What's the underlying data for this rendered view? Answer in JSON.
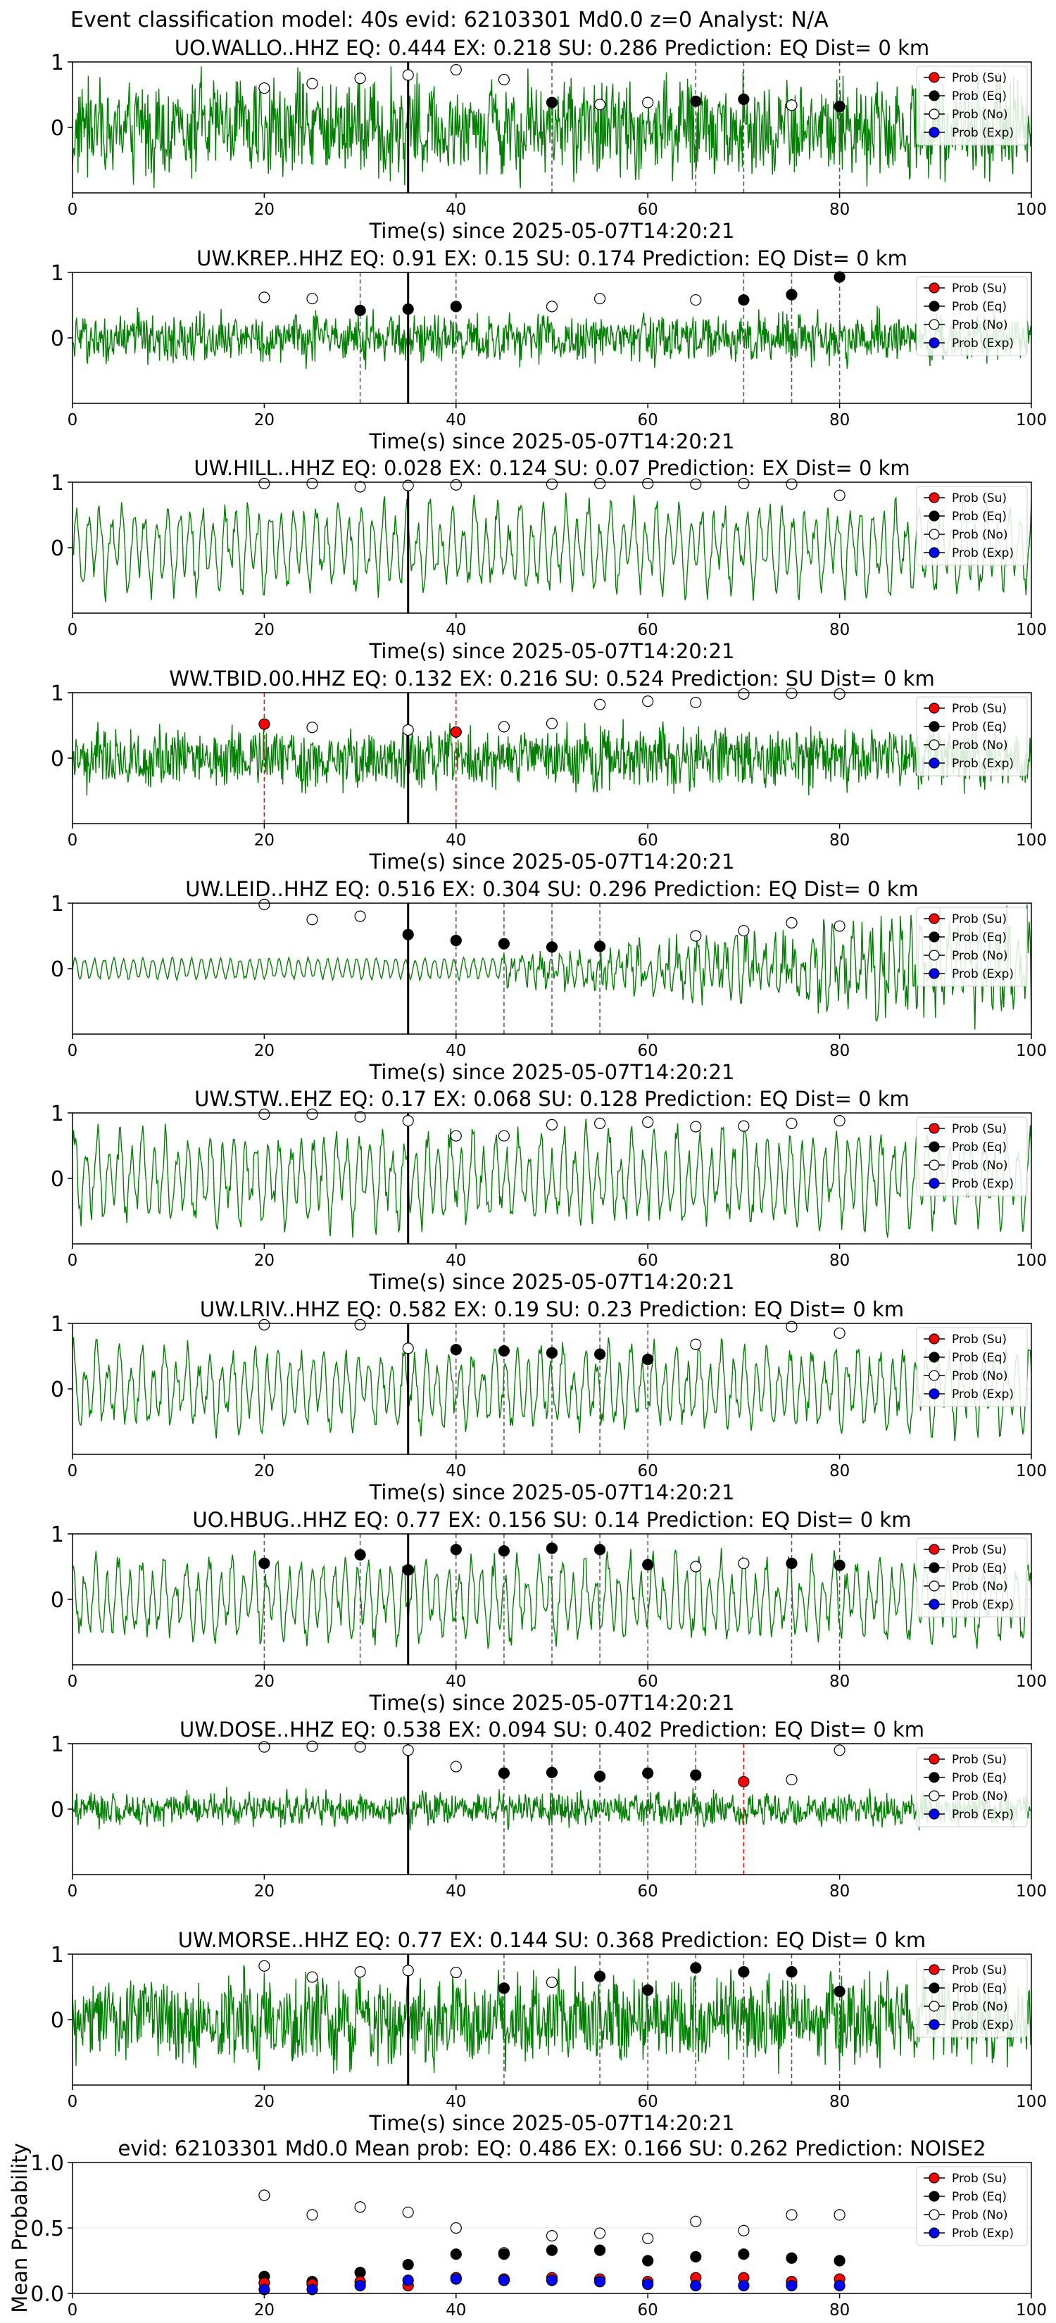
{
  "figure": {
    "title": "Event classification model: 40s evid: 62103301 Md0.0 z=0 Analyst: N/A"
  },
  "colors": {
    "waveform": "#008000",
    "su": "#ff0000",
    "eq": "#000000",
    "no": "#ffffff",
    "exp": "#0000ff",
    "pick_black": "#000000",
    "pick_red": "#ff0000"
  },
  "legend_labels": [
    "Prob (Su)",
    "Prob (Eq)",
    "Prob (No)",
    "Prob (Exp)"
  ],
  "chart_data": [
    {
      "type": "line",
      "title": "UO.WALLO..HHZ   EQ: 0.444  EX: 0.218  SU: 0.286   Prediction: EQ    Dist= 0 km",
      "xlabel": "Time(s) since 2025-05-07T14:20:21",
      "ylabel": "",
      "xlim": [
        0,
        100
      ],
      "ylim": [
        -1,
        1
      ],
      "xticks": [
        0,
        20,
        40,
        60,
        80,
        100
      ],
      "yticks": [
        0,
        1
      ],
      "legend": "top-right",
      "waveform_amplitude": 0.9,
      "waveform_style": "broadband",
      "origin_time": 35,
      "pick_lines": [
        {
          "x": 35,
          "kind": "solid"
        },
        {
          "x": 50,
          "kind": "dashed"
        },
        {
          "x": 65,
          "kind": "dashed"
        },
        {
          "x": 70,
          "kind": "dashed"
        },
        {
          "x": 80,
          "kind": "dashed"
        }
      ],
      "series": [
        {
          "name": "Prob (No)",
          "key": "no",
          "x": [
            20,
            25,
            30,
            35,
            40,
            45,
            55,
            60,
            75
          ],
          "y": [
            0.6,
            0.67,
            0.75,
            0.8,
            0.88,
            0.73,
            0.35,
            0.38,
            0.34
          ]
        },
        {
          "name": "Prob (Eq)",
          "key": "eq",
          "x": [
            50,
            65,
            70,
            80
          ],
          "y": [
            0.38,
            0.4,
            0.43,
            0.32
          ]
        }
      ]
    },
    {
      "type": "line",
      "title": "UW.KREP..HHZ   EQ: 0.91  EX: 0.15  SU: 0.174   Prediction: EQ    Dist= 0 km",
      "xlabel": "Time(s) since 2025-05-07T14:20:21",
      "ylabel": "",
      "xlim": [
        0,
        100
      ],
      "ylim": [
        -1,
        1
      ],
      "xticks": [
        0,
        20,
        40,
        60,
        80,
        100
      ],
      "yticks": [
        0,
        1
      ],
      "legend": "top-right",
      "waveform_amplitude": 0.45,
      "waveform_style": "broadband",
      "origin_time": 35,
      "pick_lines": [
        {
          "x": 30,
          "kind": "dashed"
        },
        {
          "x": 35,
          "kind": "solid"
        },
        {
          "x": 40,
          "kind": "dashed"
        },
        {
          "x": 70,
          "kind": "dashed"
        },
        {
          "x": 75,
          "kind": "dashed"
        },
        {
          "x": 80,
          "kind": "dashed"
        }
      ],
      "series": [
        {
          "name": "Prob (No)",
          "key": "no",
          "x": [
            20,
            25,
            50,
            55,
            65
          ],
          "y": [
            0.62,
            0.6,
            0.48,
            0.6,
            0.58
          ]
        },
        {
          "name": "Prob (Eq)",
          "key": "eq",
          "x": [
            30,
            35,
            40,
            70,
            75,
            80
          ],
          "y": [
            0.42,
            0.44,
            0.48,
            0.58,
            0.66,
            0.93
          ]
        }
      ]
    },
    {
      "type": "line",
      "title": "UW.HILL..HHZ   EQ: 0.028  EX: 0.124  SU: 0.07   Prediction: EX    Dist= 0 km",
      "xlabel": "Time(s) since 2025-05-07T14:20:21",
      "ylabel": "",
      "xlim": [
        0,
        100
      ],
      "ylim": [
        -1,
        1
      ],
      "xticks": [
        0,
        20,
        40,
        60,
        80,
        100
      ],
      "yticks": [
        0,
        1
      ],
      "legend": "top-right",
      "waveform_amplitude": 0.75,
      "waveform_style": "oscillatory",
      "origin_time": 35,
      "pick_lines": [
        {
          "x": 35,
          "kind": "solid"
        }
      ],
      "series": [
        {
          "name": "Prob (No)",
          "key": "no",
          "x": [
            20,
            25,
            30,
            35,
            40,
            50,
            55,
            60,
            65,
            70,
            75,
            80
          ],
          "y": [
            0.98,
            0.98,
            0.93,
            0.95,
            0.96,
            0.97,
            0.98,
            0.98,
            0.97,
            0.98,
            0.97,
            0.8
          ]
        }
      ]
    },
    {
      "type": "line",
      "title": "WW.TBID.00.HHZ   EQ: 0.132  EX: 0.216  SU: 0.524   Prediction: SU    Dist= 0 km",
      "xlabel": "Time(s) since 2025-05-07T14:20:21",
      "ylabel": "",
      "xlim": [
        0,
        100
      ],
      "ylim": [
        -1,
        1
      ],
      "xticks": [
        0,
        20,
        40,
        60,
        80,
        100
      ],
      "yticks": [
        0,
        1
      ],
      "legend": "top-right",
      "waveform_amplitude": 0.55,
      "waveform_style": "broadband",
      "origin_time": 35,
      "pick_lines": [
        {
          "x": 20,
          "kind": "red"
        },
        {
          "x": 35,
          "kind": "solid"
        },
        {
          "x": 40,
          "kind": "red"
        }
      ],
      "series": [
        {
          "name": "Prob (Su)",
          "key": "su",
          "x": [
            20,
            40
          ],
          "y": [
            0.52,
            0.4
          ]
        },
        {
          "name": "Prob (No)",
          "key": "no",
          "x": [
            25,
            35,
            45,
            50,
            55,
            60,
            65,
            70,
            75,
            80
          ],
          "y": [
            0.47,
            0.43,
            0.48,
            0.53,
            0.82,
            0.87,
            0.85,
            0.98,
            0.99,
            0.98
          ]
        }
      ]
    },
    {
      "type": "line",
      "title": "UW.LEID..HHZ   EQ: 0.516  EX: 0.304  SU: 0.296   Prediction: EQ    Dist= 0 km",
      "xlabel": "Time(s) since 2025-05-07T14:20:21",
      "ylabel": "",
      "xlim": [
        0,
        100
      ],
      "ylim": [
        -1,
        1
      ],
      "xticks": [
        0,
        20,
        40,
        60,
        80,
        100
      ],
      "yticks": [
        0,
        1
      ],
      "legend": "top-right",
      "waveform_amplitude": 0.6,
      "waveform_style": "growing",
      "origin_time": 35,
      "pick_lines": [
        {
          "x": 35,
          "kind": "solid"
        },
        {
          "x": 40,
          "kind": "dashed"
        },
        {
          "x": 45,
          "kind": "dashed"
        },
        {
          "x": 50,
          "kind": "dashed"
        },
        {
          "x": 55,
          "kind": "dashed"
        }
      ],
      "series": [
        {
          "name": "Prob (No)",
          "key": "no",
          "x": [
            20,
            25,
            30,
            65,
            70,
            75,
            80
          ],
          "y": [
            0.98,
            0.75,
            0.8,
            0.5,
            0.58,
            0.7,
            0.65
          ]
        },
        {
          "name": "Prob (Eq)",
          "key": "eq",
          "x": [
            35,
            40,
            45,
            50,
            55
          ],
          "y": [
            0.52,
            0.43,
            0.38,
            0.33,
            0.34
          ]
        }
      ]
    },
    {
      "type": "line",
      "title": "UW.STW..EHZ   EQ: 0.17  EX: 0.068  SU: 0.128   Prediction: EQ    Dist= 0 km",
      "xlabel": "Time(s) since 2025-05-07T14:20:21",
      "ylabel": "",
      "xlim": [
        0,
        100
      ],
      "ylim": [
        -1,
        1
      ],
      "xticks": [
        0,
        20,
        40,
        60,
        80,
        100
      ],
      "yticks": [
        0,
        1
      ],
      "legend": "top-right",
      "waveform_amplitude": 0.8,
      "waveform_style": "oscillatory",
      "origin_time": 35,
      "pick_lines": [
        {
          "x": 35,
          "kind": "solid"
        }
      ],
      "series": [
        {
          "name": "Prob (No)",
          "key": "no",
          "x": [
            20,
            25,
            30,
            35,
            40,
            45,
            50,
            55,
            60,
            65,
            70,
            75,
            80
          ],
          "y": [
            0.98,
            0.98,
            0.94,
            0.88,
            0.65,
            0.65,
            0.82,
            0.84,
            0.86,
            0.79,
            0.8,
            0.84,
            0.88
          ]
        }
      ]
    },
    {
      "type": "line",
      "title": "UW.LRIV..HHZ   EQ: 0.582  EX: 0.19  SU: 0.23   Prediction: EQ    Dist= 0 km",
      "xlabel": "Time(s) since 2025-05-07T14:20:21",
      "ylabel": "",
      "xlim": [
        0,
        100
      ],
      "ylim": [
        -1,
        1
      ],
      "xticks": [
        0,
        20,
        40,
        60,
        80,
        100
      ],
      "yticks": [
        0,
        1
      ],
      "legend": "top-right",
      "waveform_amplitude": 0.7,
      "waveform_style": "oscillatory",
      "origin_time": 35,
      "pick_lines": [
        {
          "x": 35,
          "kind": "solid"
        },
        {
          "x": 40,
          "kind": "dashed"
        },
        {
          "x": 45,
          "kind": "dashed"
        },
        {
          "x": 50,
          "kind": "dashed"
        },
        {
          "x": 55,
          "kind": "dashed"
        },
        {
          "x": 60,
          "kind": "dashed"
        }
      ],
      "series": [
        {
          "name": "Prob (No)",
          "key": "no",
          "x": [
            20,
            30,
            35,
            65,
            75,
            80
          ],
          "y": [
            0.98,
            0.98,
            0.62,
            0.68,
            0.95,
            0.85
          ]
        },
        {
          "name": "Prob (Eq)",
          "key": "eq",
          "x": [
            40,
            45,
            50,
            55,
            60
          ],
          "y": [
            0.6,
            0.58,
            0.55,
            0.53,
            0.45
          ]
        }
      ]
    },
    {
      "type": "line",
      "title": "UO.HBUG..HHZ   EQ: 0.77  EX: 0.156  SU: 0.14   Prediction: EQ    Dist= 0 km",
      "xlabel": "Time(s) since 2025-05-07T14:20:21",
      "ylabel": "",
      "xlim": [
        0,
        100
      ],
      "ylim": [
        -1,
        1
      ],
      "xticks": [
        0,
        20,
        40,
        60,
        80,
        100
      ],
      "yticks": [
        0,
        1
      ],
      "legend": "top-right",
      "waveform_amplitude": 0.7,
      "waveform_style": "oscillatory",
      "origin_time": 35,
      "pick_lines": [
        {
          "x": 20,
          "kind": "dashed"
        },
        {
          "x": 30,
          "kind": "dashed"
        },
        {
          "x": 35,
          "kind": "solid"
        },
        {
          "x": 40,
          "kind": "dashed"
        },
        {
          "x": 45,
          "kind": "dashed"
        },
        {
          "x": 50,
          "kind": "dashed"
        },
        {
          "x": 55,
          "kind": "dashed"
        },
        {
          "x": 60,
          "kind": "dashed"
        },
        {
          "x": 75,
          "kind": "dashed"
        },
        {
          "x": 80,
          "kind": "dashed"
        }
      ],
      "series": [
        {
          "name": "Prob (No)",
          "key": "no",
          "x": [
            65,
            70
          ],
          "y": [
            0.5,
            0.55
          ]
        },
        {
          "name": "Prob (Eq)",
          "key": "eq",
          "x": [
            20,
            30,
            35,
            40,
            45,
            50,
            55,
            60,
            75,
            80
          ],
          "y": [
            0.55,
            0.68,
            0.45,
            0.76,
            0.74,
            0.78,
            0.76,
            0.53,
            0.55,
            0.52
          ]
        }
      ]
    },
    {
      "type": "line",
      "title": "UW.DOSE..HHZ   EQ: 0.538  EX: 0.094  SU: 0.402   Prediction: EQ    Dist= 0 km",
      "xlabel": "",
      "ylabel": "",
      "xlim": [
        0,
        100
      ],
      "ylim": [
        -1,
        1
      ],
      "xticks": [
        0,
        20,
        40,
        60,
        80,
        100
      ],
      "yticks": [
        0,
        1
      ],
      "legend": "top-right",
      "waveform_amplitude": 0.3,
      "waveform_style": "broadband",
      "origin_time": 35,
      "pick_lines": [
        {
          "x": 35,
          "kind": "solid"
        },
        {
          "x": 45,
          "kind": "dashed"
        },
        {
          "x": 50,
          "kind": "dashed"
        },
        {
          "x": 55,
          "kind": "dashed"
        },
        {
          "x": 60,
          "kind": "dashed"
        },
        {
          "x": 65,
          "kind": "dashed"
        },
        {
          "x": 70,
          "kind": "red"
        }
      ],
      "series": [
        {
          "name": "Prob (Su)",
          "key": "su",
          "x": [
            70
          ],
          "y": [
            0.42
          ]
        },
        {
          "name": "Prob (No)",
          "key": "no",
          "x": [
            20,
            25,
            30,
            35,
            40,
            75,
            80
          ],
          "y": [
            0.95,
            0.96,
            0.95,
            0.9,
            0.65,
            0.45,
            0.9
          ]
        },
        {
          "name": "Prob (Eq)",
          "key": "eq",
          "x": [
            45,
            50,
            55,
            60,
            65
          ],
          "y": [
            0.55,
            0.56,
            0.5,
            0.55,
            0.52
          ]
        }
      ]
    },
    {
      "type": "line",
      "title": "UW.MORSE..HHZ   EQ: 0.77  EX: 0.144  SU: 0.368   Prediction: EQ    Dist= 0 km",
      "xlabel": "Time(s) since 2025-05-07T14:20:21",
      "ylabel": "",
      "xlim": [
        0,
        100
      ],
      "ylim": [
        -1,
        1
      ],
      "xticks": [
        0,
        20,
        40,
        60,
        80,
        100
      ],
      "yticks": [
        0,
        1
      ],
      "legend": "top-right",
      "waveform_amplitude": 0.8,
      "waveform_style": "broadband",
      "origin_time": 35,
      "pick_lines": [
        {
          "x": 35,
          "kind": "solid"
        },
        {
          "x": 45,
          "kind": "dashed"
        },
        {
          "x": 55,
          "kind": "dashed"
        },
        {
          "x": 60,
          "kind": "dashed"
        },
        {
          "x": 65,
          "kind": "dashed"
        },
        {
          "x": 70,
          "kind": "dashed"
        },
        {
          "x": 75,
          "kind": "dashed"
        },
        {
          "x": 80,
          "kind": "dashed"
        }
      ],
      "series": [
        {
          "name": "Prob (No)",
          "key": "no",
          "x": [
            20,
            25,
            30,
            35,
            40,
            50
          ],
          "y": [
            0.82,
            0.65,
            0.73,
            0.75,
            0.72,
            0.57
          ]
        },
        {
          "name": "Prob (Eq)",
          "key": "eq",
          "x": [
            45,
            55,
            60,
            65,
            70,
            75,
            80
          ],
          "y": [
            0.48,
            0.66,
            0.45,
            0.79,
            0.73,
            0.73,
            0.43
          ]
        }
      ]
    },
    {
      "type": "scatter",
      "title": "evid: 62103301  Md0.0   Mean prob:   EQ: 0.486  EX: 0.166  SU: 0.262   Prediction: NOISE2",
      "xlabel": "",
      "ylabel": "Mean Probability",
      "xlim": [
        0,
        100
      ],
      "ylim": [
        0,
        1
      ],
      "xticks": [
        0,
        20,
        40,
        60,
        80,
        100
      ],
      "yticks": [
        0.0,
        0.5,
        1.0
      ],
      "ytick_labels": [
        "0.0",
        "0.5",
        "1.0"
      ],
      "legend": "top-right",
      "series": [
        {
          "name": "Prob (No)",
          "key": "no",
          "x": [
            20,
            25,
            30,
            35,
            40,
            45,
            50,
            55,
            60,
            65,
            70,
            75,
            80
          ],
          "y": [
            0.75,
            0.6,
            0.66,
            0.62,
            0.5,
            0.31,
            0.44,
            0.46,
            0.42,
            0.55,
            0.48,
            0.6,
            0.6
          ]
        },
        {
          "name": "Prob (Eq)",
          "key": "eq",
          "x": [
            20,
            25,
            30,
            35,
            40,
            45,
            50,
            55,
            60,
            65,
            70,
            75,
            80
          ],
          "y": [
            0.13,
            0.09,
            0.16,
            0.22,
            0.3,
            0.3,
            0.33,
            0.33,
            0.25,
            0.28,
            0.3,
            0.27,
            0.25
          ]
        },
        {
          "name": "Prob (Su)",
          "key": "su",
          "x": [
            20,
            25,
            30,
            35,
            40,
            45,
            50,
            55,
            60,
            65,
            70,
            75,
            80
          ],
          "y": [
            0.08,
            0.07,
            0.09,
            0.06,
            0.12,
            0.11,
            0.12,
            0.11,
            0.09,
            0.12,
            0.12,
            0.09,
            0.11
          ]
        },
        {
          "name": "Prob (Exp)",
          "key": "exp",
          "x": [
            20,
            25,
            30,
            35,
            40,
            45,
            50,
            55,
            60,
            65,
            70,
            75,
            80
          ],
          "y": [
            0.03,
            0.03,
            0.06,
            0.1,
            0.11,
            0.1,
            0.1,
            0.09,
            0.07,
            0.06,
            0.06,
            0.06,
            0.06
          ]
        }
      ]
    }
  ]
}
